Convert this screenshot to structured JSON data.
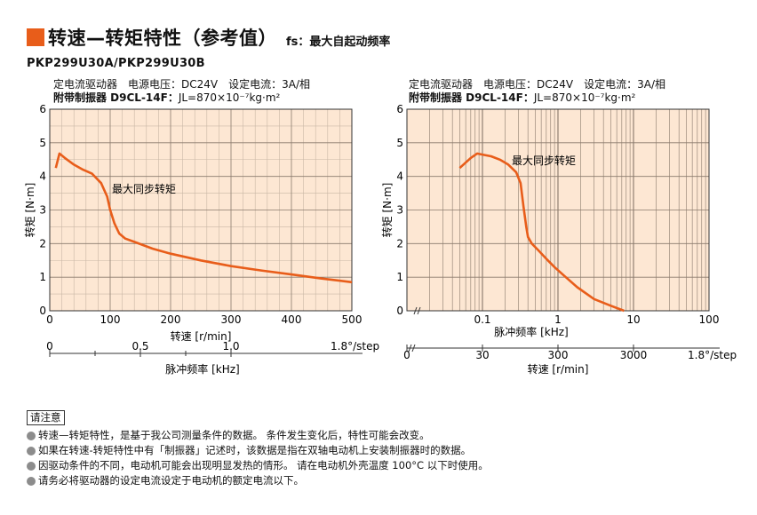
{
  "title": "转速—转矩特性（参考值）",
  "title_sub": "fs：最大自起动频率",
  "model": "PKP299U30A/PKP299U30B",
  "conditions": {
    "line1": "定电流驱动器　电源电压：DC24V　设定电流：3A/相",
    "line2_label": "附带制振器 D9CL-14F：",
    "line2_value": "JL=870×10⁻⁷kg·m²"
  },
  "colors": {
    "accent": "#e85d1a",
    "plot_bg": "#fde7d3",
    "curve": "#e85d1a"
  },
  "chart_data": [
    {
      "type": "line",
      "title": "",
      "xlabel": "转速 [r/min]",
      "ylabel": "转矩 [N·m]",
      "xlim": [
        0,
        500
      ],
      "ylim": [
        0,
        6
      ],
      "x_ticks": [
        0,
        100,
        200,
        300,
        400,
        500
      ],
      "y_ticks": [
        0,
        1,
        2,
        3,
        4,
        5,
        6
      ],
      "grid": true,
      "secondary_axis": {
        "label": "脉冲频率 [kHz]",
        "ticks": [
          "0",
          "0.5",
          "1.0"
        ],
        "tick_values": [
          0,
          0.5,
          1.0
        ],
        "step_label": "1.8°/step"
      },
      "series": [
        {
          "name": "最大同步转矩",
          "x": [
            10,
            16,
            25,
            40,
            55,
            70,
            85,
            95,
            100,
            107,
            115,
            125,
            140,
            170,
            200,
            250,
            300,
            350,
            400,
            450,
            500
          ],
          "y": [
            4.25,
            4.68,
            4.55,
            4.35,
            4.2,
            4.08,
            3.8,
            3.4,
            3.0,
            2.6,
            2.3,
            2.15,
            2.05,
            1.85,
            1.7,
            1.5,
            1.33,
            1.2,
            1.08,
            0.96,
            0.85
          ]
        }
      ]
    },
    {
      "type": "line",
      "title": "",
      "xlabel": "脉冲频率 [kHz]",
      "ylabel": "转矩 [N·m]",
      "x_scale": "log",
      "xlim": [
        0.01,
        100
      ],
      "ylim": [
        0,
        6
      ],
      "x_ticks": [
        0.1,
        1,
        10,
        100
      ],
      "x_tick_labels": [
        "0.1",
        "1",
        "10",
        "100"
      ],
      "y_ticks": [
        0,
        1,
        2,
        3,
        4,
        5,
        6
      ],
      "grid": true,
      "secondary_axis": {
        "label": "转速 [r/min]",
        "ticks": [
          "0",
          "30",
          "300",
          "3000"
        ],
        "step_label": "1.8°/step"
      },
      "series": [
        {
          "name": "最大同步转矩",
          "x": [
            0.05,
            0.07,
            0.085,
            0.1,
            0.13,
            0.17,
            0.22,
            0.28,
            0.32,
            0.35,
            0.38,
            0.4,
            0.45,
            0.55,
            0.7,
            0.9,
            1.2,
            1.8,
            3,
            5,
            7.5
          ],
          "y": [
            4.25,
            4.55,
            4.68,
            4.65,
            4.6,
            4.5,
            4.35,
            4.12,
            3.8,
            3.1,
            2.5,
            2.2,
            2.0,
            1.8,
            1.55,
            1.3,
            1.05,
            0.7,
            0.35,
            0.15,
            0.0
          ]
        }
      ]
    }
  ],
  "notes": {
    "title": "请注意",
    "items": [
      "转速—转矩特性，是基于我公司测量条件的数据。 条件发生变化后，特性可能会改变。",
      "如果在转速-转矩特性中有「制振器」记述时，该数据是指在双轴电动机上安装制振器时的数据。",
      "因驱动条件的不同，电动机可能会出现明显发热的情形。 请在电动机外壳温度 100°C 以下时使用。",
      "请务必将驱动器的设定电流设定于电动机的额定电流以下。"
    ]
  }
}
